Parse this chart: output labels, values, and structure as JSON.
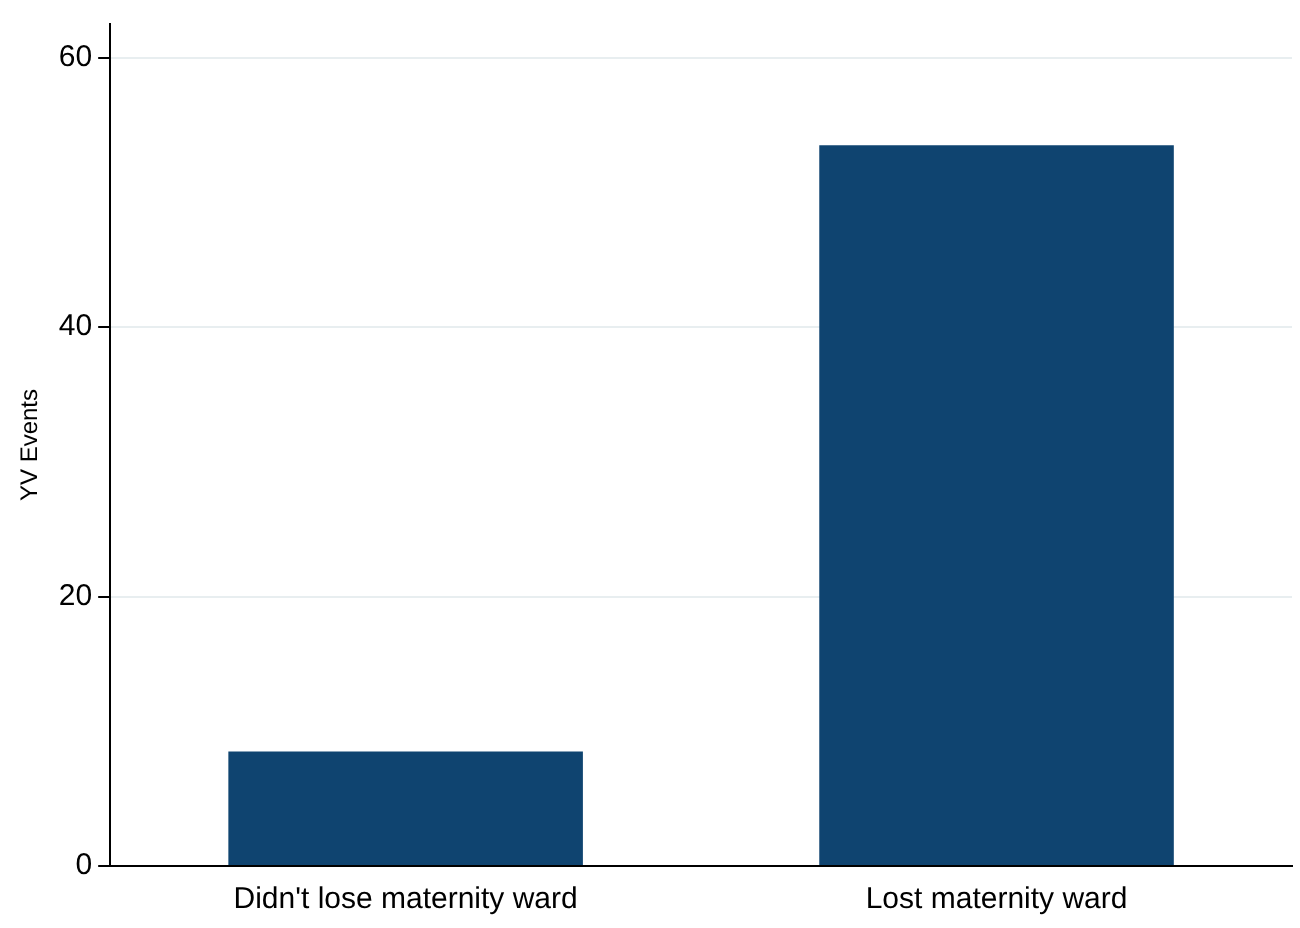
{
  "chart_data": {
    "type": "bar",
    "ylabel": "YV Events",
    "categories": [
      "Didn't lose maternity ward",
      "Lost maternity ward"
    ],
    "values": [
      8.5,
      53.5
    ],
    "color": "#0f4470",
    "ylim": [
      0,
      62.5
    ],
    "yticks": [
      0,
      20,
      40,
      60
    ],
    "grid": "y",
    "legend": false
  }
}
